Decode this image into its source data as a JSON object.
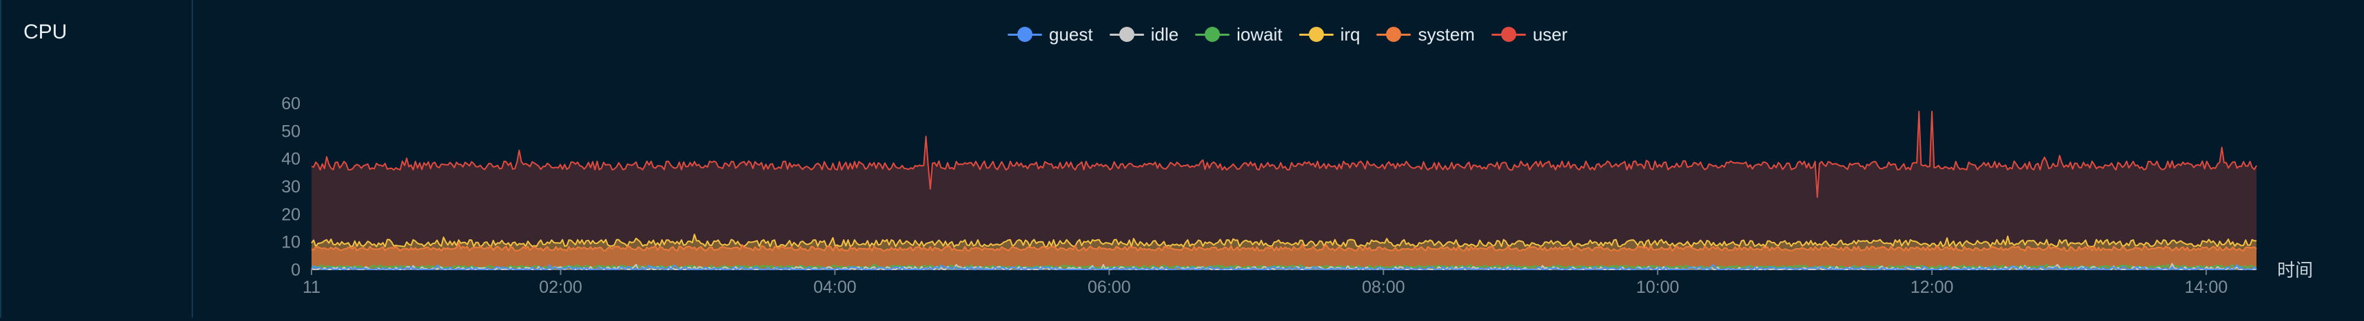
{
  "panel": {
    "title": "CPU"
  },
  "chart_data": {
    "type": "area",
    "stacked": true,
    "xlabel": "时间",
    "ylabel": "",
    "ylim": [
      0,
      60
    ],
    "yticks": [
      0,
      10,
      20,
      30,
      40,
      50,
      60
    ],
    "x_range": [
      "00:11",
      "14:22"
    ],
    "xticks": [
      {
        "label": "11",
        "time": "00:11"
      },
      {
        "label": "02:00",
        "time": "02:00"
      },
      {
        "label": "04:00",
        "time": "04:00"
      },
      {
        "label": "06:00",
        "time": "06:00"
      },
      {
        "label": "08:00",
        "time": "08:00"
      },
      {
        "label": "10:00",
        "time": "10:00"
      },
      {
        "label": "12:00",
        "time": "12:00"
      },
      {
        "label": "14:00",
        "time": "14:00"
      }
    ],
    "grid": false,
    "legend_position": "top-center",
    "series": [
      {
        "name": "guest",
        "color": "#4e8ef7",
        "level": 0,
        "peaks": []
      },
      {
        "name": "idle",
        "color": "#c8c8c8",
        "level": 0,
        "peaks": []
      },
      {
        "name": "iowait",
        "color": "#4caf50",
        "level": 1,
        "peaks": []
      },
      {
        "name": "irq",
        "color": "#f4c242",
        "level": 9.5,
        "peaks": []
      },
      {
        "name": "system",
        "color": "#ec7a3c",
        "level": 7.5,
        "peaks": []
      },
      {
        "name": "user",
        "color": "#e04a3f",
        "level": 37.5,
        "peaks": [
          {
            "time": "01:42",
            "value": 43
          },
          {
            "time": "04:40",
            "value": 48
          },
          {
            "time": "04:42",
            "value": 29
          },
          {
            "time": "11:10",
            "value": 26
          },
          {
            "time": "11:54",
            "value": 57
          },
          {
            "time": "12:00",
            "value": 57
          },
          {
            "time": "14:07",
            "value": 44
          }
        ]
      }
    ]
  }
}
